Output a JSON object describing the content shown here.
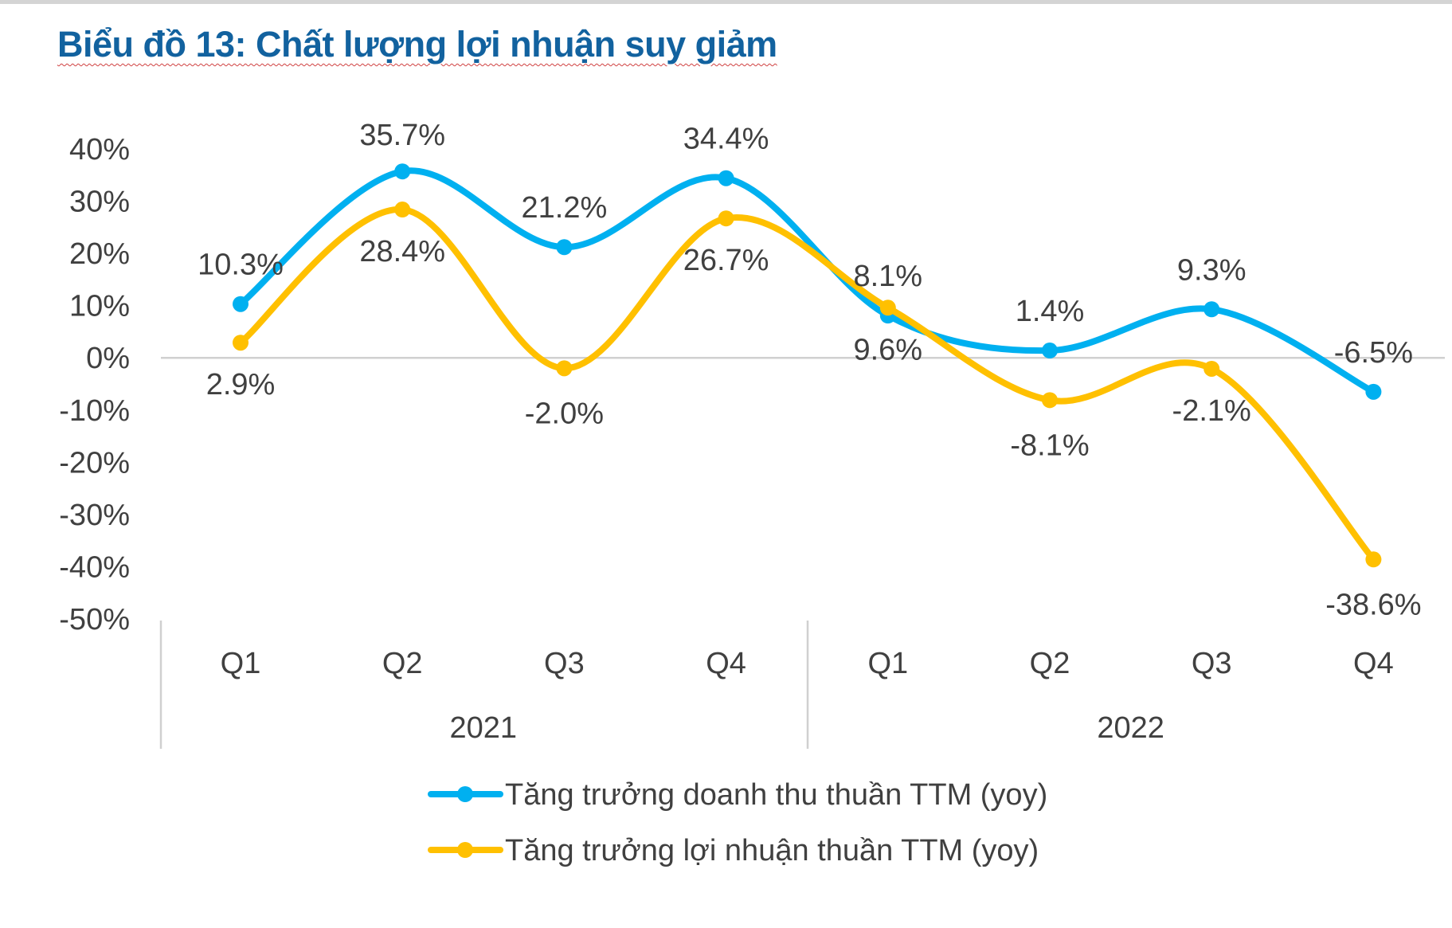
{
  "title": "Biểu đồ 13: Chất lượng lợi nhuận suy giảm",
  "chart_data": {
    "type": "line",
    "smooth": true,
    "title": "Biểu đồ 13: Chất lượng lợi nhuận suy giảm",
    "categories": [
      "Q1",
      "Q2",
      "Q3",
      "Q4",
      "Q1",
      "Q2",
      "Q3",
      "Q4"
    ],
    "groups": [
      {
        "label": "2021",
        "categories": [
          "Q1",
          "Q2",
          "Q3",
          "Q4"
        ]
      },
      {
        "label": "2022",
        "categories": [
          "Q1",
          "Q2",
          "Q3",
          "Q4"
        ]
      }
    ],
    "ylim": [
      -50,
      40
    ],
    "yticks": [
      "40%",
      "30%",
      "20%",
      "10%",
      "0%",
      "-10%",
      "-20%",
      "-30%",
      "-40%",
      "-50%"
    ],
    "ytick_values": [
      40,
      30,
      20,
      10,
      0,
      -10,
      -20,
      -30,
      -40,
      -50
    ],
    "grid": "zero-line only",
    "legend": "bottom",
    "series": [
      {
        "name": "Tăng trưởng doanh thu thuần TTM (yoy)",
        "color": "#00B0F0",
        "values": [
          10.3,
          35.7,
          21.2,
          34.4,
          8.1,
          1.4,
          9.3,
          -6.5
        ],
        "labels": [
          "10.3%",
          "35.7%",
          "21.2%",
          "34.4%",
          "8.1%",
          "1.4%",
          "9.3%",
          "-6.5%"
        ]
      },
      {
        "name": "Tăng trưởng lợi nhuận thuần TTM (yoy)",
        "color": "#FFC000",
        "values": [
          2.9,
          28.4,
          -2.0,
          26.7,
          9.6,
          -8.1,
          -2.1,
          -38.6
        ],
        "labels": [
          "2.9%",
          "28.4%",
          "-2.0%",
          "26.7%",
          "9.6%",
          "-8.1%",
          "-2.1%",
          "-38.6%"
        ]
      }
    ]
  }
}
